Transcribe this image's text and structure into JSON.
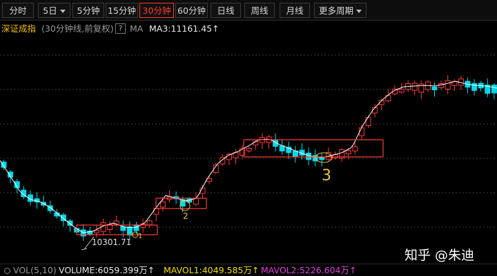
{
  "toolbar": {
    "tabs": [
      {
        "label": "分时"
      },
      {
        "label": "5日"
      },
      {
        "label": "5分钟"
      },
      {
        "label": "15分钟"
      },
      {
        "label": "30分钟"
      },
      {
        "label": "60分钟"
      },
      {
        "label": "日线"
      },
      {
        "label": "周线"
      },
      {
        "label": "月线"
      },
      {
        "label": "更多周期"
      }
    ],
    "active": "30分钟"
  },
  "info": {
    "index_name": "深证成指",
    "subtitle": "(30分钟线,前复权)",
    "help_glyph": "?",
    "ma_label": "MA",
    "ma3_text": "MA3:11161.45↑"
  },
  "chart": {
    "low_label": "10301.71",
    "annotations": {
      "mark1": "1",
      "mark2": "2",
      "mark3": "3"
    },
    "colors": {
      "up": "#ff3b3b",
      "down": "#00d8e8",
      "ma": "#ffffff",
      "box": "#ff3b3b",
      "grid": "#3a3a3a"
    }
  },
  "volume": {
    "label": "VOL(5,10)",
    "value": "VOLUME:6059.399万↑",
    "mavol1": "MAVOL1:4049.585万↑",
    "mavol2": "MAVOL2:5226.604万↑"
  },
  "watermark": "知乎 @朱迪"
}
